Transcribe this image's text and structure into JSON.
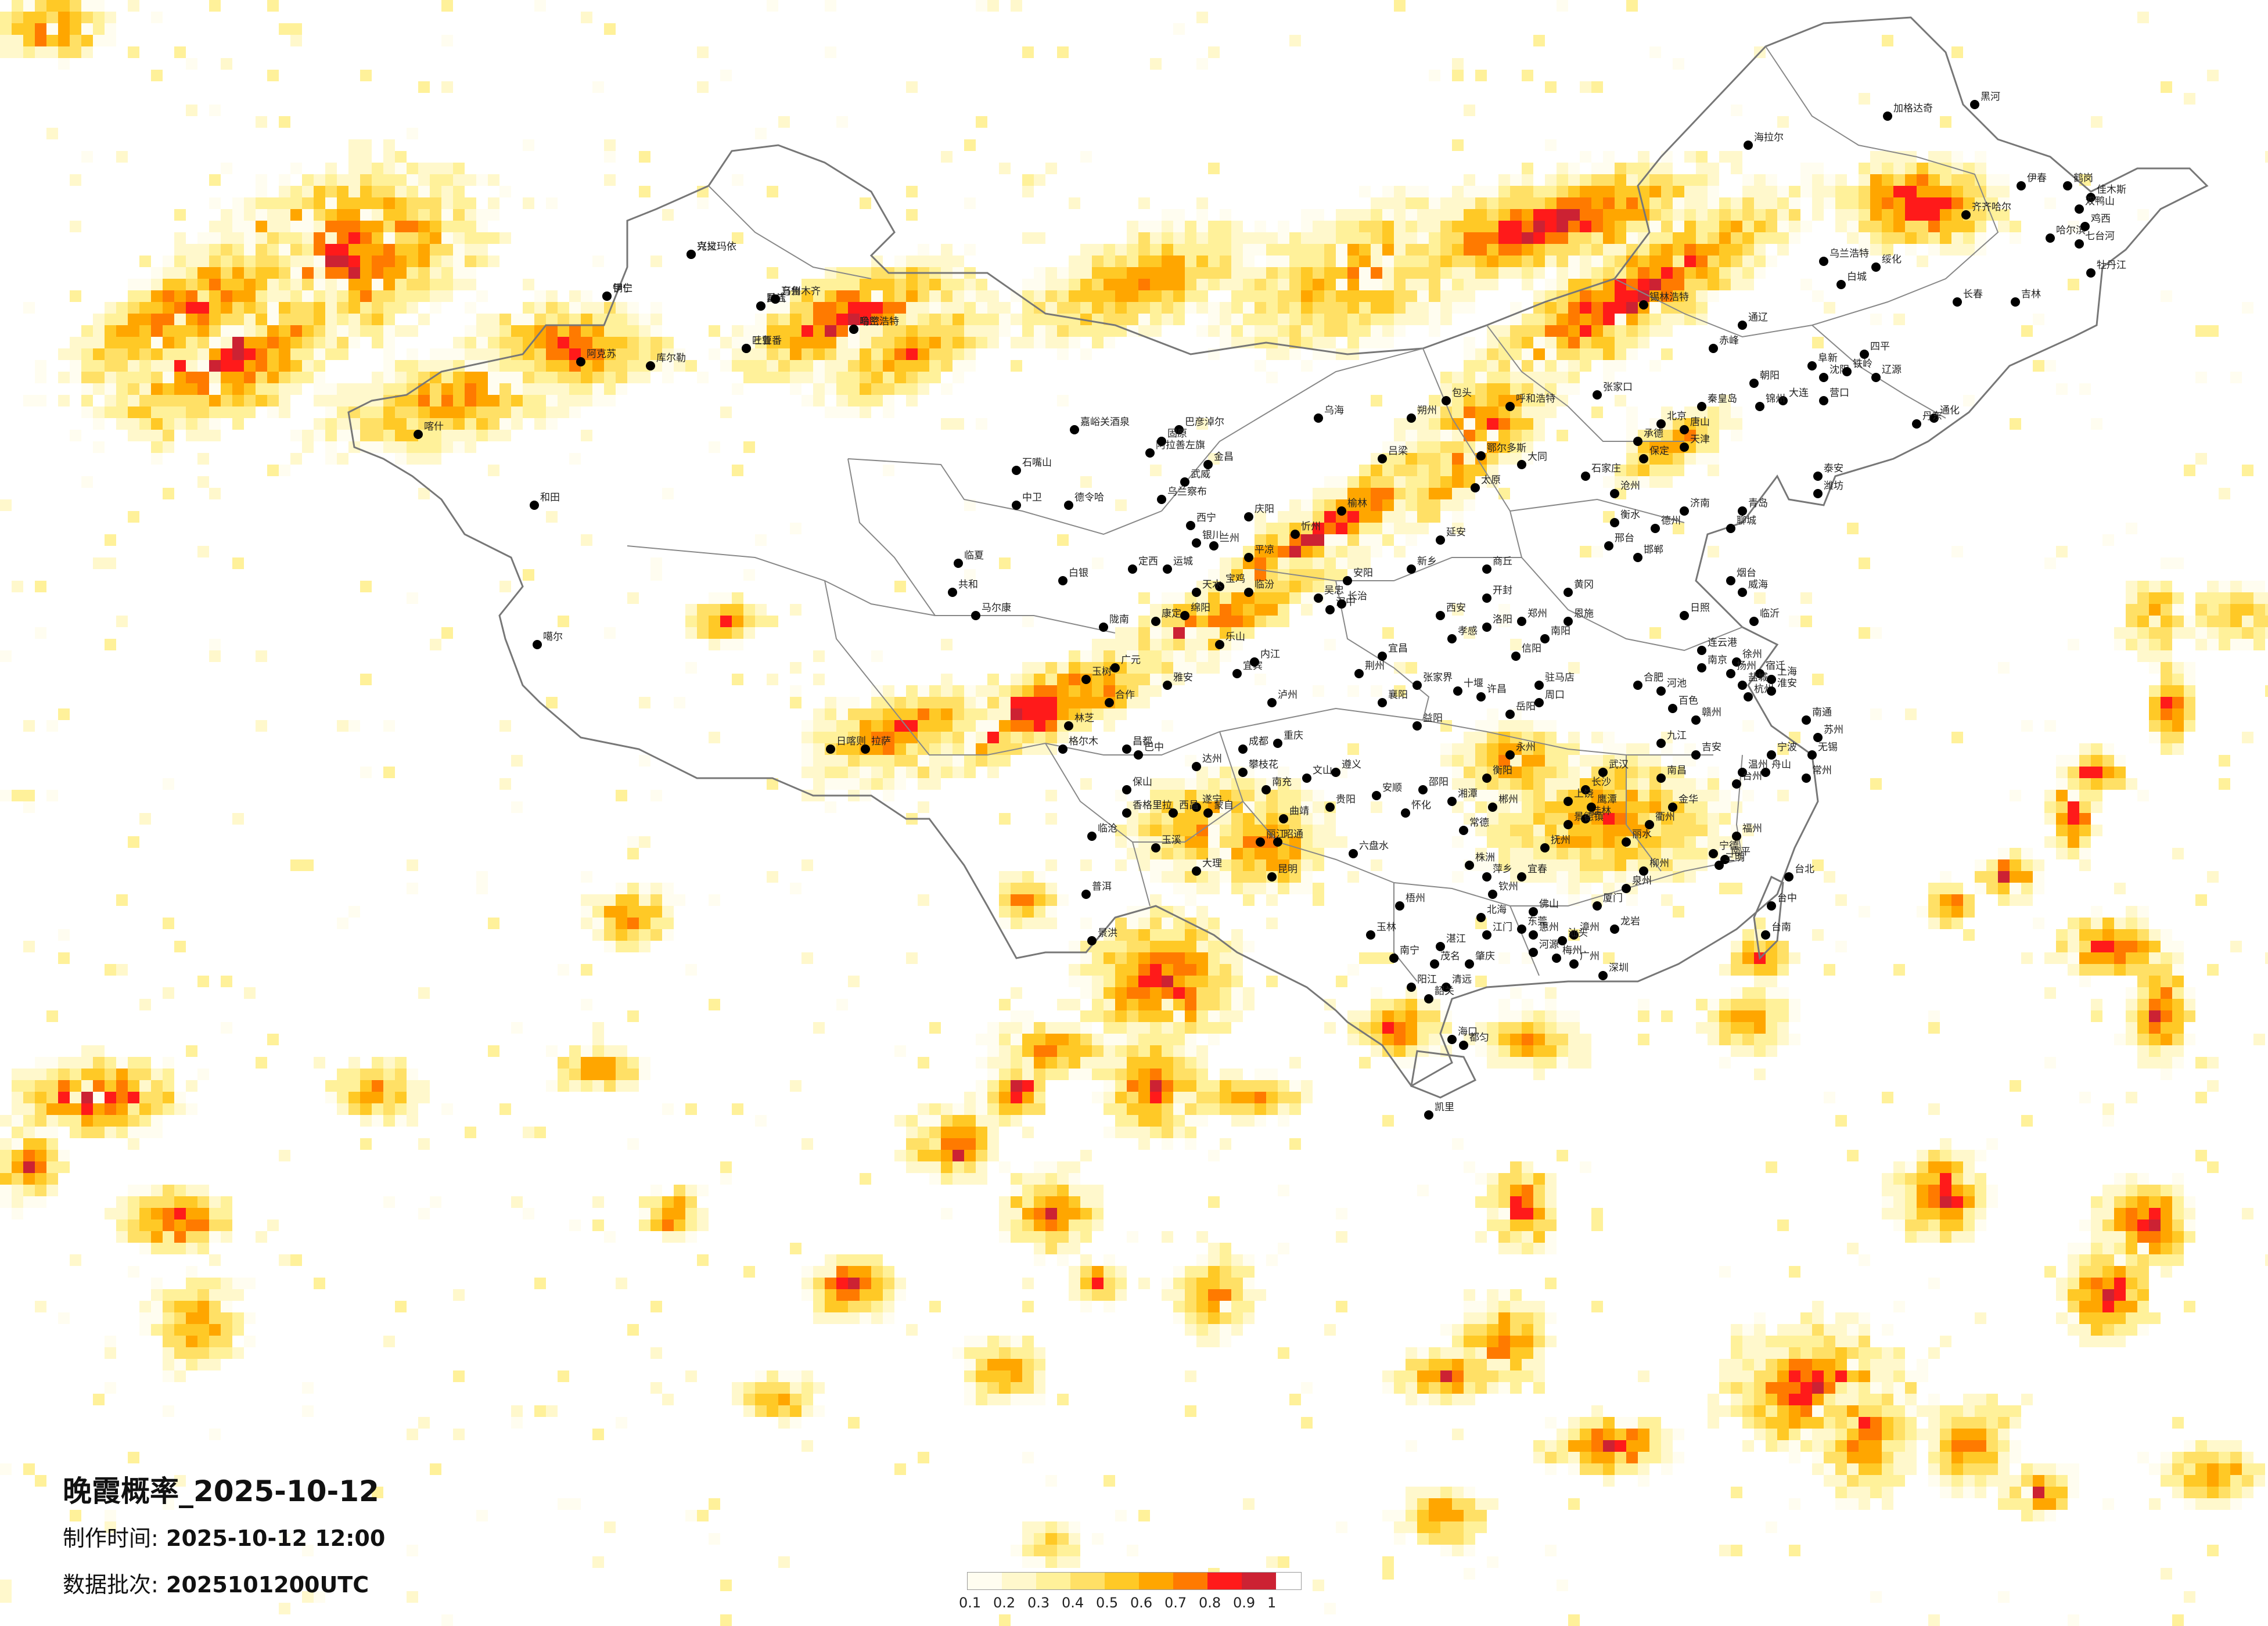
{
  "title": "晚霞概率_2025-10-12",
  "info": {
    "made_label": "制作时间:",
    "made_value": "2025-10-12 12:00",
    "batch_label": "数据批次:",
    "batch_value": "2025101200UTC"
  },
  "legend": {
    "colors": [
      "#fffdf0",
      "#fff8cc",
      "#fff19a",
      "#ffe066",
      "#ffc926",
      "#ffa600",
      "#ff7a00",
      "#ff1a1a",
      "#cc2233"
    ],
    "ticks": [
      "0.1",
      "0.2",
      "0.3",
      "0.4",
      "0.5",
      "0.6",
      "0.7",
      "0.8",
      "0.9",
      "1"
    ]
  },
  "cities": [
    {
      "name": "克拉玛依",
      "cls": "normal"
    },
    {
      "name": "伊宁",
      "cls": "normal"
    },
    {
      "name": "昌吉",
      "cls": "normal"
    },
    {
      "name": "乌鲁木齐",
      "cls": "normal"
    },
    {
      "name": "吐鲁番",
      "cls": "normal"
    },
    {
      "name": "哈密",
      "cls": "normal"
    },
    {
      "name": "阿克苏",
      "cls": "normal"
    },
    {
      "name": "喀什",
      "cls": "normal"
    },
    {
      "name": "和田",
      "cls": "normal"
    },
    {
      "name": "库尔勒",
      "cls": "normal"
    },
    {
      "name": "嘉峪关酒泉",
      "cls": "normal"
    },
    {
      "name": "金昌",
      "cls": "normal"
    },
    {
      "name": "武威",
      "cls": "normal"
    },
    {
      "name": "德令哈",
      "cls": "normal"
    },
    {
      "name": "西宁",
      "cls": "normal"
    },
    {
      "name": "兰州",
      "cls": "normal"
    },
    {
      "name": "格尔木",
      "cls": "normal"
    },
    {
      "name": "噶尔",
      "cls": "normal"
    },
    {
      "name": "拉萨",
      "cls": "normal"
    },
    {
      "name": "日喀则",
      "cls": "normal"
    },
    {
      "name": "昌都",
      "cls": "normal"
    },
    {
      "name": "林芝",
      "cls": "normal"
    },
    {
      "name": "玉树",
      "cls": "normal"
    },
    {
      "name": "银川",
      "cls": "normal"
    },
    {
      "name": "乌海",
      "cls": "normal"
    },
    {
      "name": "包头",
      "cls": "normal"
    },
    {
      "name": "呼和浩特",
      "cls": "normal"
    },
    {
      "name": "鄂尔多斯",
      "cls": "normal"
    },
    {
      "name": "锡林浩特",
      "cls": "normal"
    },
    {
      "name": "张家口",
      "cls": "normal"
    },
    {
      "name": "北京",
      "cls": "normal"
    },
    {
      "name": "天津",
      "cls": "normal"
    },
    {
      "name": "石家庄",
      "cls": "normal"
    },
    {
      "name": "太原",
      "cls": "normal"
    },
    {
      "name": "大同",
      "cls": "normal"
    },
    {
      "name": "济南",
      "cls": "normal"
    },
    {
      "name": "青岛",
      "cls": "normal"
    },
    {
      "name": "郑州",
      "cls": "normal"
    },
    {
      "name": "西安",
      "cls": "normal"
    },
    {
      "name": "延安",
      "cls": "normal"
    },
    {
      "name": "汉中",
      "cls": "normal"
    },
    {
      "name": "成都",
      "cls": "normal"
    },
    {
      "name": "重庆",
      "cls": "normal"
    },
    {
      "name": "贵阳",
      "cls": "normal"
    },
    {
      "name": "昆明",
      "cls": "normal"
    },
    {
      "name": "大理",
      "cls": "normal"
    },
    {
      "name": "南宁",
      "cls": "normal"
    },
    {
      "name": "海口",
      "cls": "normal"
    },
    {
      "name": "广州",
      "cls": "normal"
    },
    {
      "name": "深圳",
      "cls": "normal"
    },
    {
      "name": "福州",
      "cls": "normal"
    },
    {
      "name": "台北",
      "cls": "normal"
    },
    {
      "name": "台中",
      "cls": "normal"
    },
    {
      "name": "台南",
      "cls": "normal"
    },
    {
      "name": "杭州",
      "cls": "normal"
    },
    {
      "name": "上海",
      "cls": "normal"
    },
    {
      "name": "南京",
      "cls": "normal"
    },
    {
      "name": "合肥",
      "cls": "normal"
    },
    {
      "name": "武汉",
      "cls": "normal"
    },
    {
      "name": "长沙",
      "cls": "normal"
    },
    {
      "name": "南昌",
      "cls": "normal"
    },
    {
      "name": "沈阳",
      "cls": "normal"
    },
    {
      "name": "长春",
      "cls": "normal"
    },
    {
      "name": "哈尔滨",
      "cls": "normal"
    },
    {
      "name": "大连",
      "cls": "normal"
    },
    {
      "name": "海拉尔",
      "cls": "normal"
    },
    {
      "name": "加格达奇",
      "cls": "normal"
    },
    {
      "name": "黑河",
      "cls": "normal"
    },
    {
      "name": "齐齐哈尔",
      "cls": "normal"
    },
    {
      "name": "佳木斯",
      "cls": "normal"
    },
    {
      "name": "牡丹江",
      "cls": "normal"
    },
    {
      "name": "吉林",
      "cls": "normal"
    },
    {
      "name": "赤峰",
      "cls": "normal"
    },
    {
      "name": "通辽",
      "cls": "normal"
    },
    {
      "name": "乌兰浩特",
      "cls": "normal"
    },
    {
      "name": "伊春",
      "cls": "normal"
    },
    {
      "name": "绥化",
      "cls": "normal"
    },
    {
      "name": "白城",
      "cls": "normal"
    },
    {
      "name": "鸡西",
      "cls": "normal"
    },
    {
      "name": "七台河",
      "cls": "normal"
    },
    {
      "name": "双鸭山",
      "cls": "normal"
    },
    {
      "name": "鹤岗",
      "cls": "normal"
    },
    {
      "name": "四平",
      "cls": "normal"
    },
    {
      "name": "辽源",
      "cls": "normal"
    },
    {
      "name": "通化",
      "cls": "normal"
    },
    {
      "name": "丹东",
      "cls": "normal"
    },
    {
      "name": "锦州",
      "cls": "normal"
    },
    {
      "name": "朝阳",
      "cls": "normal"
    },
    {
      "name": "阜新",
      "cls": "normal"
    },
    {
      "name": "铁岭",
      "cls": "normal"
    },
    {
      "name": "营口",
      "cls": "normal"
    },
    {
      "name": "秦皇岛",
      "cls": "normal"
    },
    {
      "name": "唐山",
      "cls": "normal"
    },
    {
      "name": "承德",
      "cls": "normal"
    },
    {
      "name": "保定",
      "cls": "normal"
    },
    {
      "name": "沧州",
      "cls": "normal"
    },
    {
      "name": "衡水",
      "cls": "normal"
    },
    {
      "name": "邢台",
      "cls": "normal"
    },
    {
      "name": "邯郸",
      "cls": "normal"
    },
    {
      "name": "德州",
      "cls": "normal"
    },
    {
      "name": "聊城",
      "cls": "normal"
    },
    {
      "name": "泰安",
      "cls": "normal"
    },
    {
      "name": "潍坊",
      "cls": "normal"
    },
    {
      "name": "烟台",
      "cls": "normal"
    },
    {
      "name": "威海",
      "cls": "normal"
    },
    {
      "name": "临沂",
      "cls": "normal"
    },
    {
      "name": "日照",
      "cls": "normal"
    },
    {
      "name": "连云港",
      "cls": "normal"
    },
    {
      "name": "徐州",
      "cls": "normal"
    },
    {
      "name": "宿迁",
      "cls": "normal"
    },
    {
      "name": "淮安",
      "cls": "normal"
    },
    {
      "name": "盐城",
      "cls": "normal"
    },
    {
      "name": "扬州",
      "cls": "normal"
    },
    {
      "name": "南通",
      "cls": "normal"
    },
    {
      "name": "苏州",
      "cls": "normal"
    },
    {
      "name": "无锡",
      "cls": "normal"
    },
    {
      "name": "常州",
      "cls": "normal"
    },
    {
      "name": "宁波",
      "cls": "normal"
    },
    {
      "name": "舟山",
      "cls": "normal"
    },
    {
      "name": "温州",
      "cls": "normal"
    },
    {
      "name": "台州",
      "cls": "normal"
    },
    {
      "name": "金华",
      "cls": "normal"
    },
    {
      "name": "衢州",
      "cls": "normal"
    },
    {
      "name": "丽水",
      "cls": "normal"
    },
    {
      "name": "宁德",
      "cls": "normal"
    },
    {
      "name": "南平",
      "cls": "normal"
    },
    {
      "name": "三明",
      "cls": "normal"
    },
    {
      "name": "龙岩",
      "cls": "normal"
    },
    {
      "name": "泉州",
      "cls": "normal"
    },
    {
      "name": "厦门",
      "cls": "normal"
    },
    {
      "name": "漳州",
      "cls": "normal"
    },
    {
      "name": "汕头",
      "cls": "normal"
    },
    {
      "name": "梅州",
      "cls": "normal"
    },
    {
      "name": "河源",
      "cls": "normal"
    },
    {
      "name": "惠州",
      "cls": "normal"
    },
    {
      "name": "东莞",
      "cls": "normal"
    },
    {
      "name": "佛山",
      "cls": "normal"
    },
    {
      "name": "江门",
      "cls": "normal"
    },
    {
      "name": "肇庆",
      "cls": "normal"
    },
    {
      "name": "清远",
      "cls": "normal"
    },
    {
      "name": "韶关",
      "cls": "normal"
    },
    {
      "name": "阳江",
      "cls": "normal"
    },
    {
      "name": "茂名",
      "cls": "normal"
    },
    {
      "name": "湛江",
      "cls": "normal"
    },
    {
      "name": "北海",
      "cls": "normal"
    },
    {
      "name": "钦州",
      "cls": "normal"
    },
    {
      "name": "玉林",
      "cls": "normal"
    },
    {
      "name": "梧州",
      "cls": "normal"
    },
    {
      "name": "柳州",
      "cls": "normal"
    },
    {
      "name": "桂林",
      "cls": "normal"
    },
    {
      "name": "百色",
      "cls": "normal"
    },
    {
      "name": "河池",
      "cls": "normal"
    },
    {
      "name": "赣州",
      "cls": "normal"
    },
    {
      "name": "吉安",
      "cls": "normal"
    },
    {
      "name": "九江",
      "cls": "normal"
    },
    {
      "name": "景德镇",
      "cls": "normal"
    },
    {
      "name": "上饶",
      "cls": "normal"
    },
    {
      "name": "鹰潭",
      "cls": "normal"
    },
    {
      "name": "抚州",
      "cls": "normal"
    },
    {
      "name": "宜春",
      "cls": "normal"
    },
    {
      "name": "萍乡",
      "cls": "normal"
    },
    {
      "name": "株洲",
      "cls": "normal"
    },
    {
      "name": "湘潭",
      "cls": "normal"
    },
    {
      "name": "衡阳",
      "cls": "normal"
    },
    {
      "name": "郴州",
      "cls": "normal"
    },
    {
      "name": "永州",
      "cls": "normal"
    },
    {
      "name": "邵阳",
      "cls": "normal"
    },
    {
      "name": "怀化",
      "cls": "normal"
    },
    {
      "name": "常德",
      "cls": "normal"
    },
    {
      "name": "岳阳",
      "cls": "normal"
    },
    {
      "name": "益阳",
      "cls": "normal"
    },
    {
      "name": "张家界",
      "cls": "normal"
    },
    {
      "name": "宜昌",
      "cls": "normal"
    },
    {
      "name": "荆州",
      "cls": "normal"
    },
    {
      "name": "襄阳",
      "cls": "normal"
    },
    {
      "name": "十堰",
      "cls": "normal"
    },
    {
      "name": "孝感",
      "cls": "normal"
    },
    {
      "name": "黄冈",
      "cls": "normal"
    },
    {
      "name": "恩施",
      "cls": "normal"
    },
    {
      "name": "南阳",
      "cls": "normal"
    },
    {
      "name": "信阳",
      "cls": "normal"
    },
    {
      "name": "驻马店",
      "cls": "normal"
    },
    {
      "name": "周口",
      "cls": "normal"
    },
    {
      "name": "许昌",
      "cls": "normal"
    },
    {
      "name": "洛阳",
      "cls": "normal"
    },
    {
      "name": "开封",
      "cls": "normal"
    },
    {
      "name": "商丘",
      "cls": "normal"
    },
    {
      "name": "新乡",
      "cls": "normal"
    },
    {
      "name": "安阳",
      "cls": "normal"
    },
    {
      "name": "长治",
      "cls": "normal"
    },
    {
      "name": "临汾",
      "cls": "normal"
    },
    {
      "name": "运城",
      "cls": "normal"
    },
    {
      "name": "宝鸡",
      "cls": "normal"
    },
    {
      "name": "天水",
      "cls": "normal"
    },
    {
      "name": "平凉",
      "cls": "normal"
    },
    {
      "name": "庆阳",
      "cls": "normal"
    },
    {
      "name": "榆林",
      "cls": "normal"
    },
    {
      "name": "忻州",
      "cls": "normal"
    },
    {
      "name": "吕梁",
      "cls": "normal"
    },
    {
      "name": "朔州",
      "cls": "normal"
    },
    {
      "name": "阿拉善左旗",
      "cls": "normal"
    },
    {
      "name": "乌兰察布",
      "cls": "normal"
    },
    {
      "name": "巴彦淖尔",
      "cls": "normal"
    },
    {
      "name": "石嘴山",
      "cls": "normal"
    },
    {
      "name": "吴忠",
      "cls": "normal"
    },
    {
      "name": "中卫",
      "cls": "normal"
    },
    {
      "name": "固原",
      "cls": "normal"
    },
    {
      "name": "白银",
      "cls": "normal"
    },
    {
      "name": "定西",
      "cls": "normal"
    },
    {
      "name": "陇南",
      "cls": "normal"
    },
    {
      "name": "合作",
      "cls": "normal"
    },
    {
      "name": "临夏",
      "cls": "normal"
    },
    {
      "name": "共和",
      "cls": "normal"
    },
    {
      "name": "马尔康",
      "cls": "normal"
    },
    {
      "name": "康定",
      "cls": "normal"
    },
    {
      "name": "雅安",
      "cls": "normal"
    },
    {
      "name": "乐山",
      "cls": "normal"
    },
    {
      "name": "宜宾",
      "cls": "normal"
    },
    {
      "name": "泸州",
      "cls": "normal"
    },
    {
      "name": "内江",
      "cls": "normal"
    },
    {
      "name": "绵阳",
      "cls": "normal"
    },
    {
      "name": "广元",
      "cls": "normal"
    },
    {
      "name": "南充",
      "cls": "normal"
    },
    {
      "name": "达州",
      "cls": "normal"
    },
    {
      "name": "巴中",
      "cls": "normal"
    },
    {
      "name": "遂宁",
      "cls": "normal"
    },
    {
      "name": "西昌",
      "cls": "normal"
    },
    {
      "name": "攀枝花",
      "cls": "normal"
    },
    {
      "name": "丽江",
      "cls": "normal"
    },
    {
      "name": "香格里拉",
      "cls": "normal"
    },
    {
      "name": "保山",
      "cls": "normal"
    },
    {
      "name": "临沧",
      "cls": "normal"
    },
    {
      "name": "普洱",
      "cls": "normal"
    },
    {
      "name": "景洪",
      "cls": "normal"
    },
    {
      "name": "玉溪",
      "cls": "normal"
    },
    {
      "name": "蒙自",
      "cls": "normal"
    },
    {
      "name": "文山",
      "cls": "normal"
    },
    {
      "name": "曲靖",
      "cls": "normal"
    },
    {
      "name": "昭通",
      "cls": "normal"
    },
    {
      "name": "六盘水",
      "cls": "normal"
    },
    {
      "name": "安顺",
      "cls": "normal"
    },
    {
      "name": "遵义",
      "cls": "normal"
    },
    {
      "name": "凯里",
      "cls": "normal"
    },
    {
      "name": "都匀",
      "cls": "normal"
    },
    {
      "name": "兴义",
      "cls": "normal"
    },
    {
      "name": "铜仁",
      "cls": "normal"
    },
    {
      "name": "黔江",
      "cls": "normal"
    },
    {
      "name": "万州",
      "cls": "normal"
    },
    {
      "name": "三亚",
      "cls": "normal"
    },
    {
      "name": "乌兰浩特",
      "cls": "normal"
    }
  ]
}
